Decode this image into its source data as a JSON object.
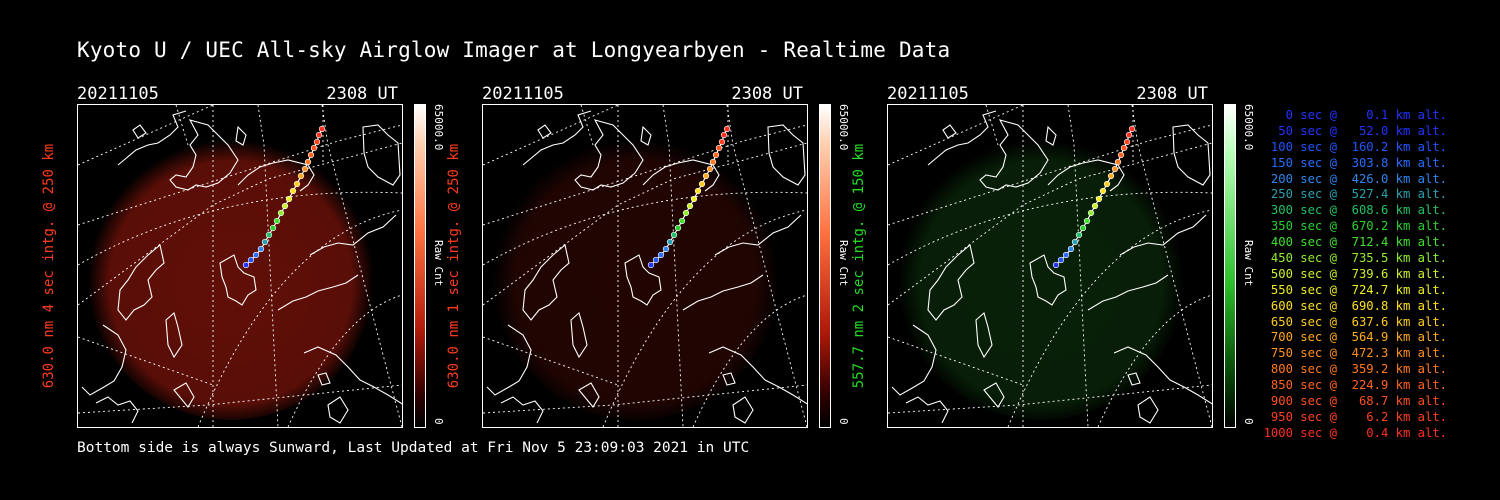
{
  "title": "Kyoto U / UEC All-sky Airglow Imager at Longyearbyen - Realtime Data",
  "footer": "Bottom side is always Sunward, Last Updated at Fri Nov  5 23:09:03 2021 in UTC",
  "panels": [
    {
      "date": "20211105",
      "time": "2308 UT",
      "ylabel": "630.0 nm 4 sec intg. @ 250 km",
      "label_color": "#ff3b1f",
      "cbar_max": "65000.0",
      "cbar_unit": "Raw Cnt",
      "cbar_min": "0",
      "glow": "red",
      "glow_strength": 0.85
    },
    {
      "date": "20211105",
      "time": "2308 UT",
      "ylabel": "630.0 nm 1 sec intg. @ 250 km",
      "label_color": "#ff3b1f",
      "cbar_max": "65000.0",
      "cbar_unit": "Raw Cnt",
      "cbar_min": "0",
      "glow": "red",
      "glow_strength": 0.3
    },
    {
      "date": "20211105",
      "time": "2308 UT",
      "ylabel": "557.7 nm 2 sec intg. @ 150 km",
      "label_color": "#22dd22",
      "cbar_max": "65000.0",
      "cbar_unit": "Raw Cnt",
      "cbar_min": "0",
      "glow": "green",
      "glow_strength": 0.45
    }
  ],
  "legend": [
    {
      "text": "   0 sec @    0.1 km alt.",
      "color": "#2233ff"
    },
    {
      "text": "  50 sec @   52.0 km alt.",
      "color": "#2233ff"
    },
    {
      "text": " 100 sec @  160.2 km alt.",
      "color": "#2255ff"
    },
    {
      "text": " 150 sec @  303.8 km alt.",
      "color": "#2a6cff"
    },
    {
      "text": " 200 sec @  426.0 km alt.",
      "color": "#2f86ee"
    },
    {
      "text": " 250 sec @  527.4 km alt.",
      "color": "#2aa0b0"
    },
    {
      "text": " 300 sec @  608.6 km alt.",
      "color": "#22c066"
    },
    {
      "text": " 350 sec @  670.2 km alt.",
      "color": "#2ad030"
    },
    {
      "text": " 400 sec @  712.4 km alt.",
      "color": "#40e030"
    },
    {
      "text": " 450 sec @  735.5 km alt.",
      "color": "#90ee30"
    },
    {
      "text": " 500 sec @  739.6 km alt.",
      "color": "#ccf030"
    },
    {
      "text": " 550 sec @  724.7 km alt.",
      "color": "#eeee22"
    },
    {
      "text": " 600 sec @  690.8 km alt.",
      "color": "#ffe020"
    },
    {
      "text": " 650 sec @  637.6 km alt.",
      "color": "#ffcc20"
    },
    {
      "text": " 700 sec @  564.9 km alt.",
      "color": "#ffaa20"
    },
    {
      "text": " 750 sec @  472.3 km alt.",
      "color": "#ff9020"
    },
    {
      "text": " 800 sec @  359.2 km alt.",
      "color": "#ff7a20"
    },
    {
      "text": " 850 sec @  224.9 km alt.",
      "color": "#ff6420"
    },
    {
      "text": " 900 sec @   68.7 km alt.",
      "color": "#ff5020"
    },
    {
      "text": " 950 sec @    6.2 km alt.",
      "color": "#ff4020"
    },
    {
      "text": "1000 sec @    0.4 km alt.",
      "color": "#ff3020"
    }
  ],
  "trajectory_colors": [
    "#2233ff",
    "#2255ff",
    "#2a6cff",
    "#2f86ee",
    "#2aa0b0",
    "#22c066",
    "#2ad030",
    "#40e030",
    "#90ee30",
    "#ccf030",
    "#eeee22",
    "#ffe020",
    "#ffcc20",
    "#ffaa20",
    "#ff9020",
    "#ff7a20",
    "#ff6420",
    "#ff5020",
    "#ff4020",
    "#ff3020",
    "#ff3020"
  ]
}
